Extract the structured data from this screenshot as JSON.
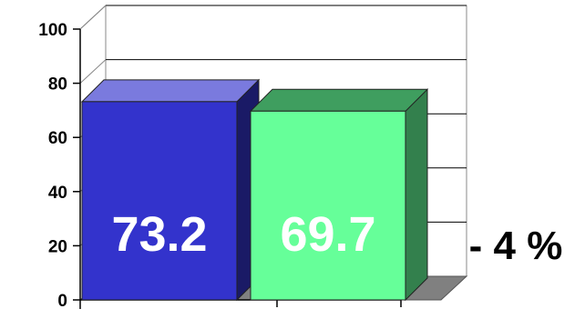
{
  "chart_data": {
    "type": "bar",
    "categories": [
      "",
      ""
    ],
    "values": [
      73.2,
      69.7
    ],
    "data_labels": [
      "73.2",
      "69.7"
    ],
    "colors": [
      "#3333cc",
      "#66ff99"
    ],
    "ylim": [
      0,
      100
    ],
    "y_ticks": [
      "0",
      "20",
      "40",
      "60",
      "80",
      "100"
    ],
    "title": "",
    "xlabel": "",
    "ylabel": "",
    "three_d": true,
    "grid": true,
    "legend": "none",
    "annotation": "- 4 %"
  }
}
